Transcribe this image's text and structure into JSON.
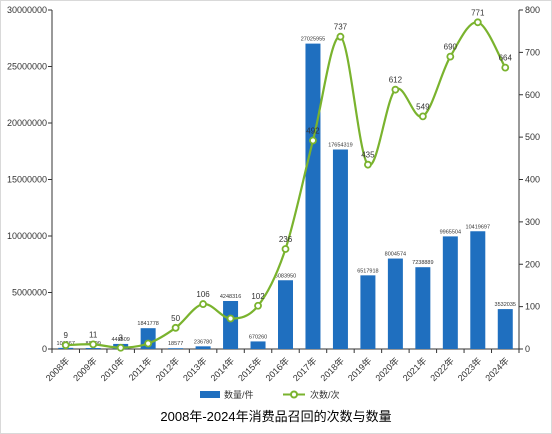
{
  "chart_data": {
    "type": "bar+line",
    "title": "2008年-2024年消费品召回的次数与数量",
    "categories": [
      "2008年",
      "2009年",
      "2010年",
      "2011年",
      "2012年",
      "2013年",
      "2014年",
      "2015年",
      "2016年",
      "2017年",
      "2018年",
      "2019年",
      "2020年",
      "2021年",
      "2022年",
      "2023年",
      "2024年"
    ],
    "series": [
      {
        "name": "数量/件",
        "type": "bar",
        "axis": "left",
        "color": "#1f6fbf",
        "values": [
          101567,
          88009,
          448509,
          1841778,
          18577,
          236780,
          4248316,
          670260,
          6083950,
          27025955,
          17654319,
          6517918,
          8004574,
          7238889,
          9965504,
          10419697,
          3532035
        ],
        "labels": [
          "101567",
          "88009",
          "448509",
          "1841778",
          "18577",
          "236780",
          "4248316",
          "670260",
          "6083950",
          "27025955",
          "17654319",
          "6517918",
          "8004574",
          "7238889",
          "9965504",
          "10419697",
          "3532035"
        ]
      },
      {
        "name": "次数/次",
        "type": "line",
        "axis": "right",
        "color": "#7ab32e",
        "values": [
          9,
          11,
          3,
          13,
          50,
          106,
          72,
          102,
          236,
          492,
          737,
          435,
          612,
          549,
          690,
          771,
          664
        ],
        "labels": [
          "9",
          "11",
          "3",
          "",
          "50",
          "106",
          "",
          "102",
          "236",
          "492",
          "737",
          "435",
          "612",
          "549",
          "690",
          "771",
          "664"
        ]
      }
    ],
    "y_left": {
      "min": 0,
      "max": 30000000,
      "ticks": [
        "0",
        "5000000",
        "10000000",
        "15000000",
        "20000000",
        "25000000",
        "30000000"
      ]
    },
    "y_right": {
      "min": 0,
      "max": 800,
      "ticks": [
        "0",
        "100",
        "200",
        "300",
        "400",
        "500",
        "600",
        "700",
        "800"
      ]
    },
    "grid": false,
    "legend_position": "bottom"
  }
}
